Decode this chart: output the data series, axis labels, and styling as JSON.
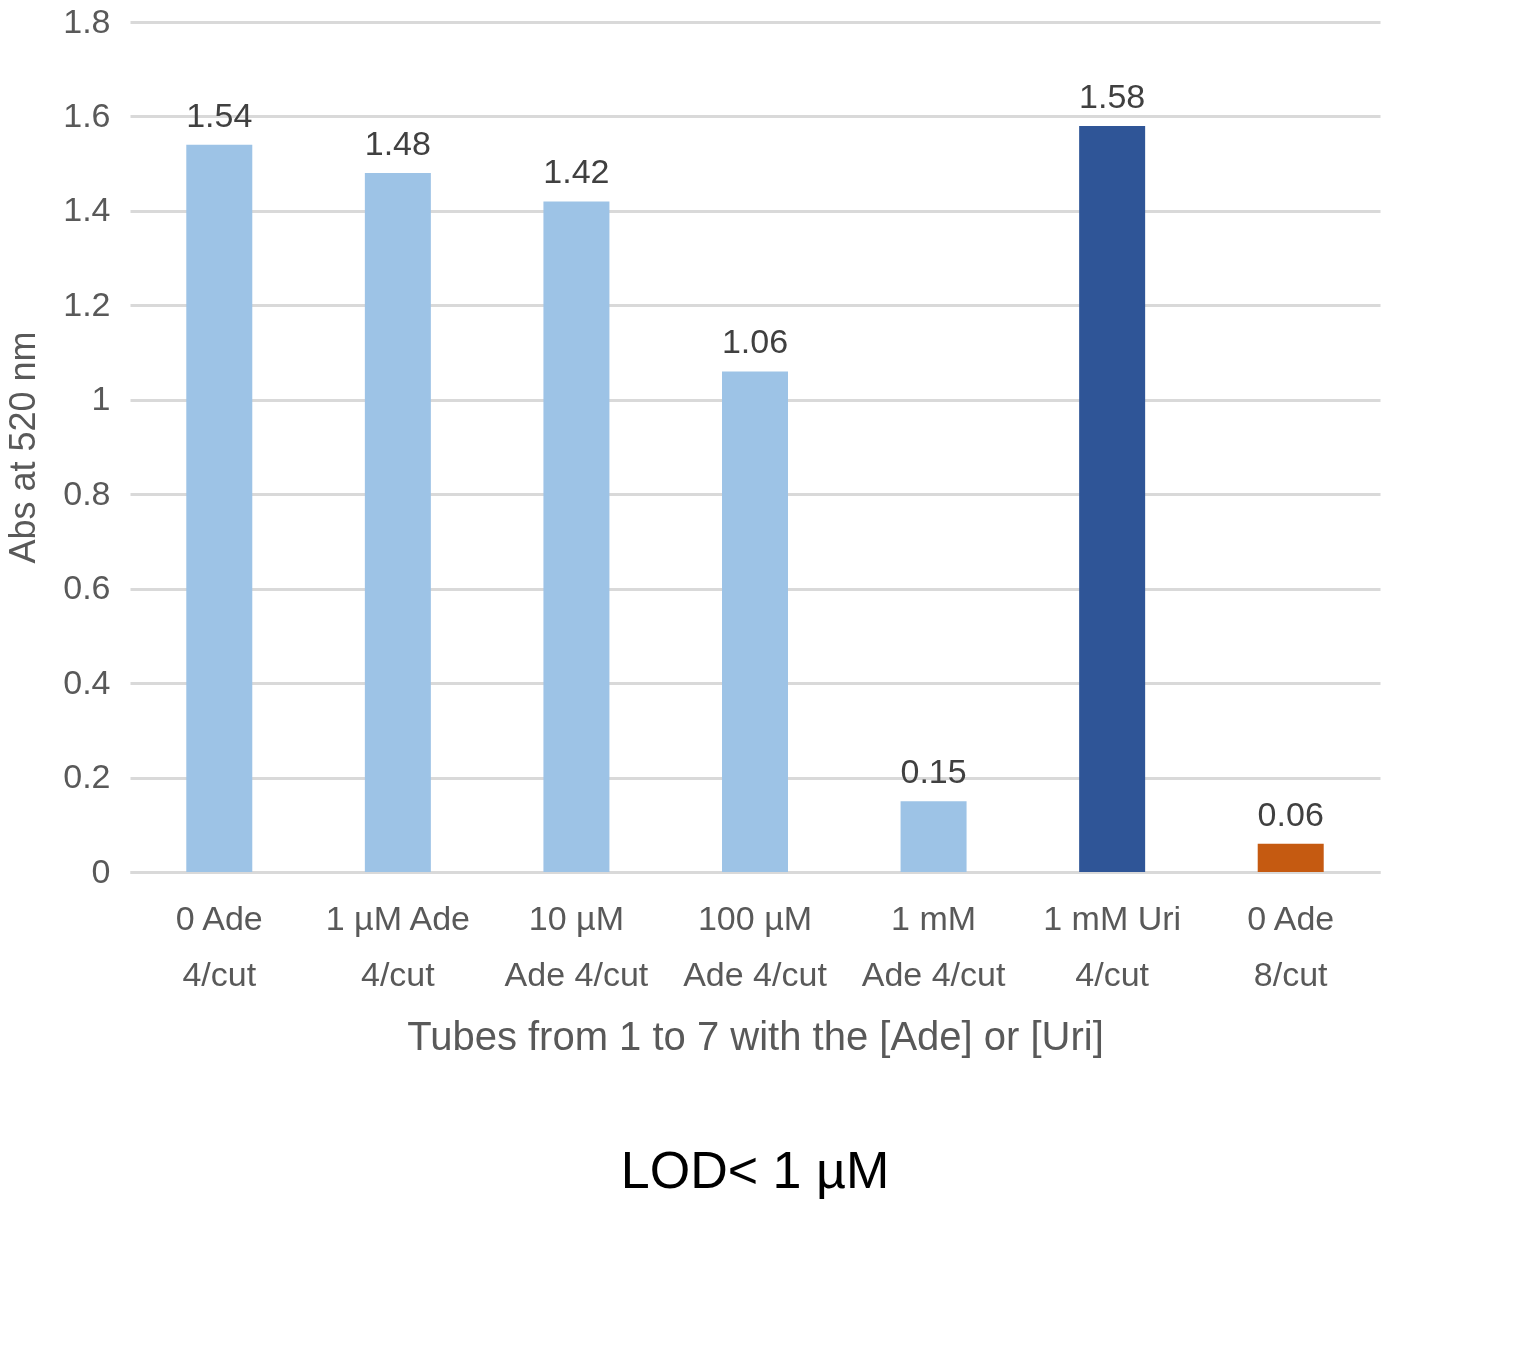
{
  "chart_data": {
    "type": "bar",
    "categories": [
      "0 Ade\n4/cut",
      "1 µM Ade\n4/cut",
      "10 µM\nAde 4/cut",
      "100 µM\nAde 4/cut",
      "1 mM\nAde 4/cut",
      "1 mM Uri\n4/cut",
      "0 Ade\n8/cut"
    ],
    "values": [
      1.54,
      1.48,
      1.42,
      1.06,
      0.15,
      1.58,
      0.06
    ],
    "colors": [
      "#9dc3e6",
      "#9dc3e6",
      "#9dc3e6",
      "#9dc3e6",
      "#9dc3e6",
      "#2f5597",
      "#c55a11"
    ],
    "xlabel": "Tubes from 1 to 7 with the [Ade] or [Uri]",
    "ylabel": "Abs at 520 nm",
    "ylim": [
      0,
      1.8
    ],
    "yticks": [
      0,
      0.2,
      0.4,
      0.6,
      0.8,
      1,
      1.2,
      1.4,
      1.6,
      1.8
    ],
    "grid": "y",
    "data_labels": true,
    "annotations": [
      "LOD< 1 µM"
    ]
  }
}
